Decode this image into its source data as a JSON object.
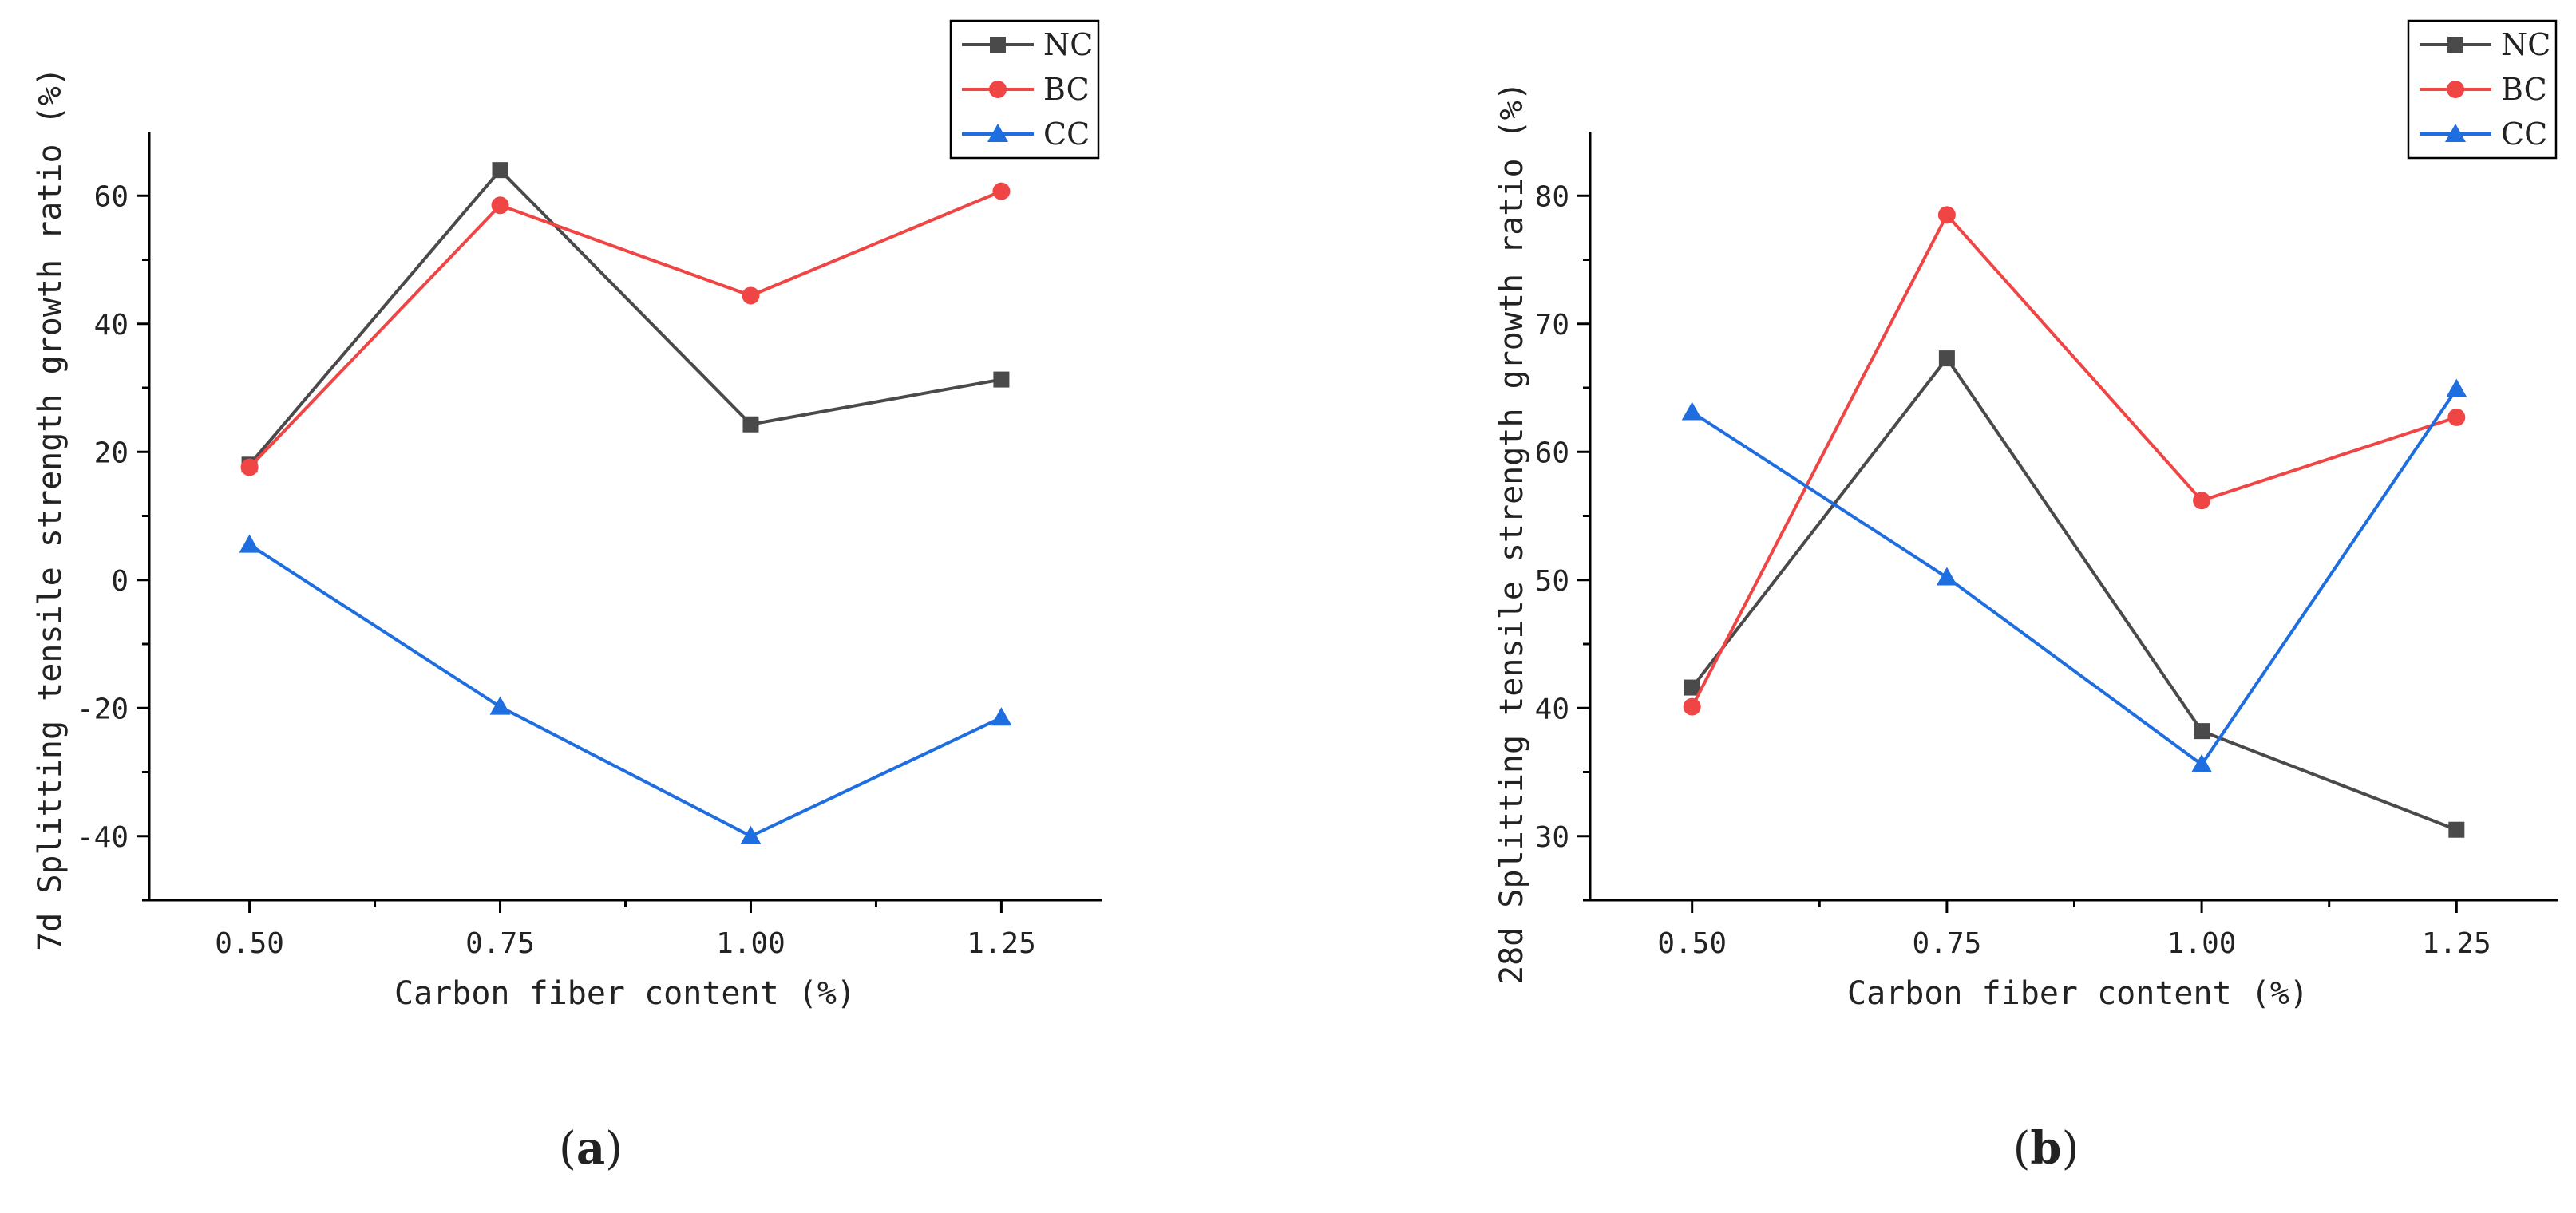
{
  "chart_data": [
    {
      "id": "a",
      "type": "line",
      "panel_label": "a",
      "xlabel": "Carbon fiber content (%)",
      "ylabel": "7d Splitting tensile strength growth ratio (%)",
      "categories": [
        "0.50",
        "0.75",
        "1.00",
        "1.25"
      ],
      "x": [
        0.5,
        0.75,
        1.0,
        1.25
      ],
      "xlim": [
        0.4,
        1.35
      ],
      "ylim": [
        -50,
        70
      ],
      "yticks": [
        -40,
        -20,
        0,
        20,
        40,
        60
      ],
      "ytick_labels": [
        "-40",
        "-20",
        "0",
        "20",
        "40",
        "60"
      ],
      "legend_position": "top-right",
      "series": [
        {
          "name": "NC",
          "color": "#4a4a4a",
          "marker": "square",
          "values": [
            18,
            64,
            24.3,
            31.3
          ]
        },
        {
          "name": "BC",
          "color": "#f04545",
          "marker": "circle",
          "values": [
            17.6,
            58.5,
            44.4,
            60.7
          ]
        },
        {
          "name": "CC",
          "color": "#1f6ee0",
          "marker": "triangle",
          "values": [
            5.5,
            -19.8,
            -40,
            -21.5
          ]
        }
      ]
    },
    {
      "id": "b",
      "type": "line",
      "panel_label": "b",
      "xlabel": "Carbon fiber content (%)",
      "ylabel": "28d Splitting tensile strength growth ratio (%)",
      "categories": [
        "0.50",
        "0.75",
        "1.00",
        "1.25"
      ],
      "x": [
        0.5,
        0.75,
        1.0,
        1.25
      ],
      "xlim": [
        0.4,
        1.35
      ],
      "ylim": [
        25,
        85
      ],
      "yticks": [
        30,
        40,
        50,
        60,
        70,
        80
      ],
      "ytick_labels": [
        "30",
        "40",
        "50",
        "60",
        "70",
        "80"
      ],
      "legend_position": "top-right",
      "series": [
        {
          "name": "NC",
          "color": "#4a4a4a",
          "marker": "square",
          "values": [
            41.6,
            67.3,
            38.2,
            30.5
          ]
        },
        {
          "name": "BC",
          "color": "#f04545",
          "marker": "circle",
          "values": [
            40.1,
            78.5,
            56.2,
            62.7
          ]
        },
        {
          "name": "CC",
          "color": "#1f6ee0",
          "marker": "triangle",
          "values": [
            63.1,
            50.2,
            35.6,
            64.9
          ]
        }
      ]
    }
  ]
}
